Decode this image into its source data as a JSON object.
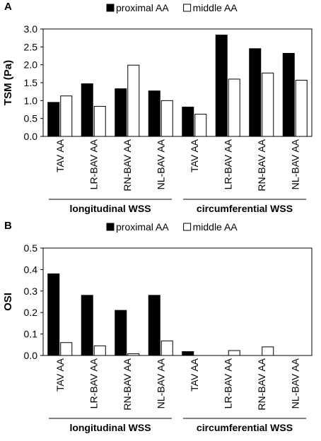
{
  "chart_data": [
    {
      "type": "bar",
      "panel_label": "A",
      "ylabel": "TSM (Pa)",
      "ylim": [
        0,
        3.0
      ],
      "yticks": [
        "0.0",
        "0.5",
        "1.0",
        "1.5",
        "2.0",
        "2.5",
        "3.0"
      ],
      "categories": [
        "TAV AA",
        "LR-BAV AA",
        "RN-BAV AA",
        "NL-BAV AA",
        "TAV AA",
        "LR-BAV AA",
        "RN-BAV AA",
        "NL-BAV AA"
      ],
      "groups": [
        {
          "label": "longitudinal WSS",
          "start": 0,
          "end": 3
        },
        {
          "label": "circumferential WSS",
          "start": 4,
          "end": 7
        }
      ],
      "series": [
        {
          "name": "proximal AA",
          "color": "#000000",
          "values": [
            0.95,
            1.47,
            1.33,
            1.27,
            0.82,
            2.83,
            2.45,
            2.32
          ]
        },
        {
          "name": "middle AA",
          "color": "#ffffff",
          "values": [
            1.13,
            0.84,
            1.99,
            1.0,
            0.62,
            1.6,
            1.77,
            1.57
          ]
        }
      ],
      "grid": false,
      "legend": "top"
    },
    {
      "type": "bar",
      "panel_label": "B",
      "ylabel": "OSI",
      "ylim": [
        0,
        0.5
      ],
      "yticks": [
        "0.0",
        "0.1",
        "0.2",
        "0.3",
        "0.4",
        "0.5"
      ],
      "categories": [
        "TAV AA",
        "LR-BAV AA",
        "RN-BAV AA",
        "NL-BAV AA",
        "TAV AA",
        "LR-BAV AA",
        "RN-BAV AA",
        "NL-BAV AA"
      ],
      "groups": [
        {
          "label": "longitudinal WSS",
          "start": 0,
          "end": 3
        },
        {
          "label": "circumferential WSS",
          "start": 4,
          "end": 7
        }
      ],
      "series": [
        {
          "name": "proximal AA",
          "color": "#000000",
          "values": [
            0.38,
            0.28,
            0.21,
            0.28,
            0.018,
            0,
            0,
            0
          ]
        },
        {
          "name": "middle AA",
          "color": "#ffffff",
          "values": [
            0.06,
            0.045,
            0.008,
            0.068,
            0,
            0.023,
            0.04,
            0
          ]
        }
      ],
      "grid": false,
      "legend": "top"
    }
  ]
}
